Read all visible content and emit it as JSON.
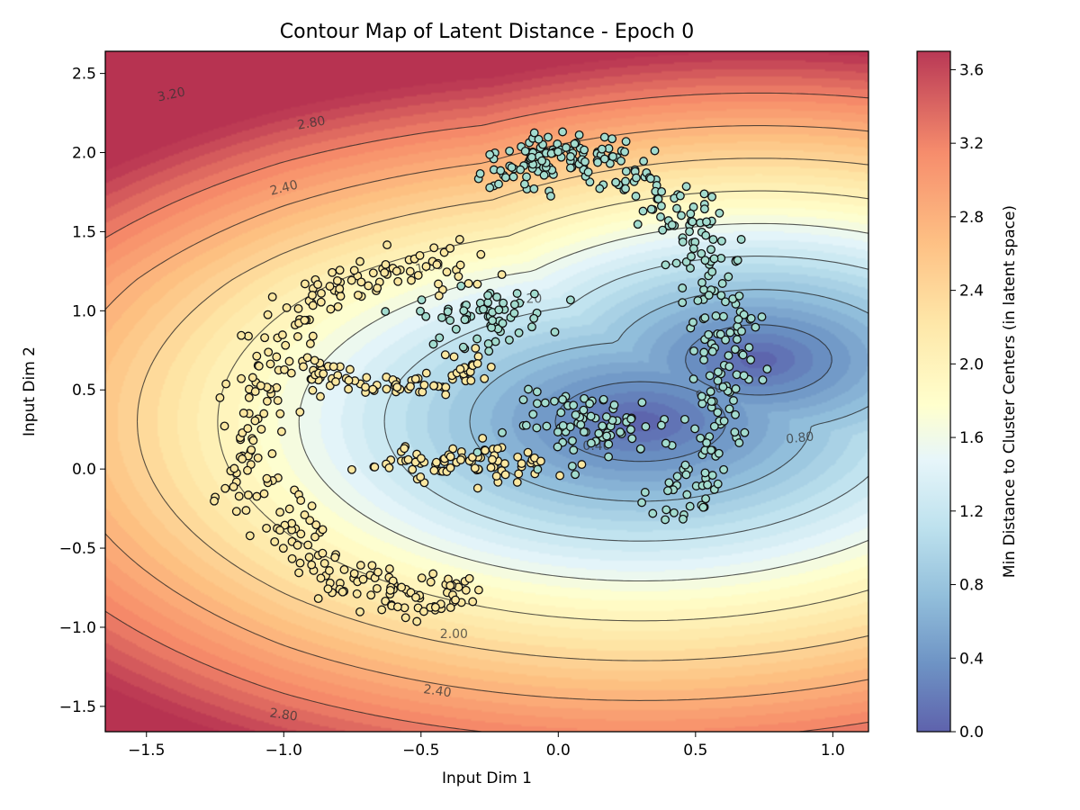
{
  "chart_data": {
    "type": "contour-scatter",
    "title": "Contour Map of Latent Distance - Epoch 0",
    "xlabel": "Input Dim 1",
    "ylabel": "Input Dim 2",
    "xlim": [
      -1.65,
      1.13
    ],
    "ylim": [
      -1.66,
      2.64
    ],
    "xticks": [
      -1.5,
      -1.0,
      -0.5,
      0.0,
      0.5,
      1.0
    ],
    "xtick_labels": [
      "−1.5",
      "−1.0",
      "−0.5",
      "0.0",
      "0.5",
      "1.0"
    ],
    "yticks": [
      -1.5,
      -1.0,
      -0.5,
      0.0,
      0.5,
      1.0,
      1.5,
      2.0,
      2.5
    ],
    "ytick_labels": [
      "−1.5",
      "−1.0",
      "−0.5",
      "0.0",
      "0.5",
      "1.0",
      "1.5",
      "2.0",
      "2.5"
    ],
    "colorbar": {
      "label": "Min Distance to Cluster Centers (in latent space)",
      "range": [
        0.0,
        3.7
      ],
      "ticks": [
        0.0,
        0.4,
        0.8,
        1.2,
        1.6,
        2.0,
        2.4,
        2.8,
        3.2,
        3.6
      ],
      "tick_labels": [
        "0.0",
        "0.4",
        "0.8",
        "1.2",
        "1.6",
        "2.0",
        "2.4",
        "2.8",
        "3.2",
        "3.6"
      ],
      "colormap": "RdYlBu_r"
    },
    "cluster_centers_approx": [
      {
        "x": 0.3,
        "y": 0.3
      },
      {
        "x": 0.73,
        "y": 0.69
      }
    ],
    "contour_levels": [
      0.4,
      0.8,
      1.2,
      1.6,
      2.0,
      2.4,
      2.8,
      3.2
    ],
    "contour_labels": [
      {
        "text": "3.20",
        "x": -1.41,
        "y": 2.37,
        "angle": -12
      },
      {
        "text": "2.80",
        "x": -0.9,
        "y": 2.19,
        "angle": -10
      },
      {
        "text": "2.40",
        "x": -1.0,
        "y": 1.78,
        "angle": -14
      },
      {
        "text": "1.60",
        "x": -0.47,
        "y": 1.28,
        "angle": -10
      },
      {
        "text": "1.20",
        "x": -0.11,
        "y": 1.08,
        "angle": 0
      },
      {
        "text": "0.80",
        "x": 0.88,
        "y": 0.2,
        "angle": -6
      },
      {
        "text": "0.40",
        "x": 0.55,
        "y": 0.49,
        "angle": -20
      },
      {
        "text": "0.40",
        "x": 0.14,
        "y": 0.15,
        "angle": 0
      },
      {
        "text": "2.00",
        "x": -0.38,
        "y": -1.04,
        "angle": 0
      },
      {
        "text": "2.40",
        "x": -0.44,
        "y": -1.4,
        "angle": 8
      },
      {
        "text": "2.80",
        "x": -1.0,
        "y": -1.55,
        "angle": 8
      }
    ],
    "series": [
      {
        "color": "#fbe7a0",
        "arcs": [
          {
            "cx": -0.5,
            "cy": 0.24,
            "rx": 0.6,
            "ry": 1.06,
            "a0": 75,
            "a1": 289,
            "n": 270,
            "spread": 0.07
          },
          {
            "cx": -0.62,
            "cy": 0.67,
            "rx": 0.28,
            "ry": 0.15,
            "a0": 180,
            "a1": 360,
            "n": 80,
            "spread": 0.05
          }
        ],
        "clusters": [
          {
            "x": -0.32,
            "y": 0.05,
            "n": 80,
            "sx": 0.17,
            "sy": 0.06
          }
        ]
      },
      {
        "color": "#a3dccf",
        "arcs": [
          {
            "cx": 0.05,
            "cy": 0.68,
            "rx": 0.55,
            "ry": 1.32,
            "a0": -48,
            "a1": 118,
            "n": 330,
            "spread": 0.07
          }
        ],
        "clusters": [
          {
            "x": -0.27,
            "y": 0.96,
            "n": 60,
            "sx": 0.12,
            "sy": 0.09
          },
          {
            "x": 0.13,
            "y": 0.28,
            "n": 80,
            "sx": 0.15,
            "sy": 0.1
          }
        ]
      }
    ]
  }
}
